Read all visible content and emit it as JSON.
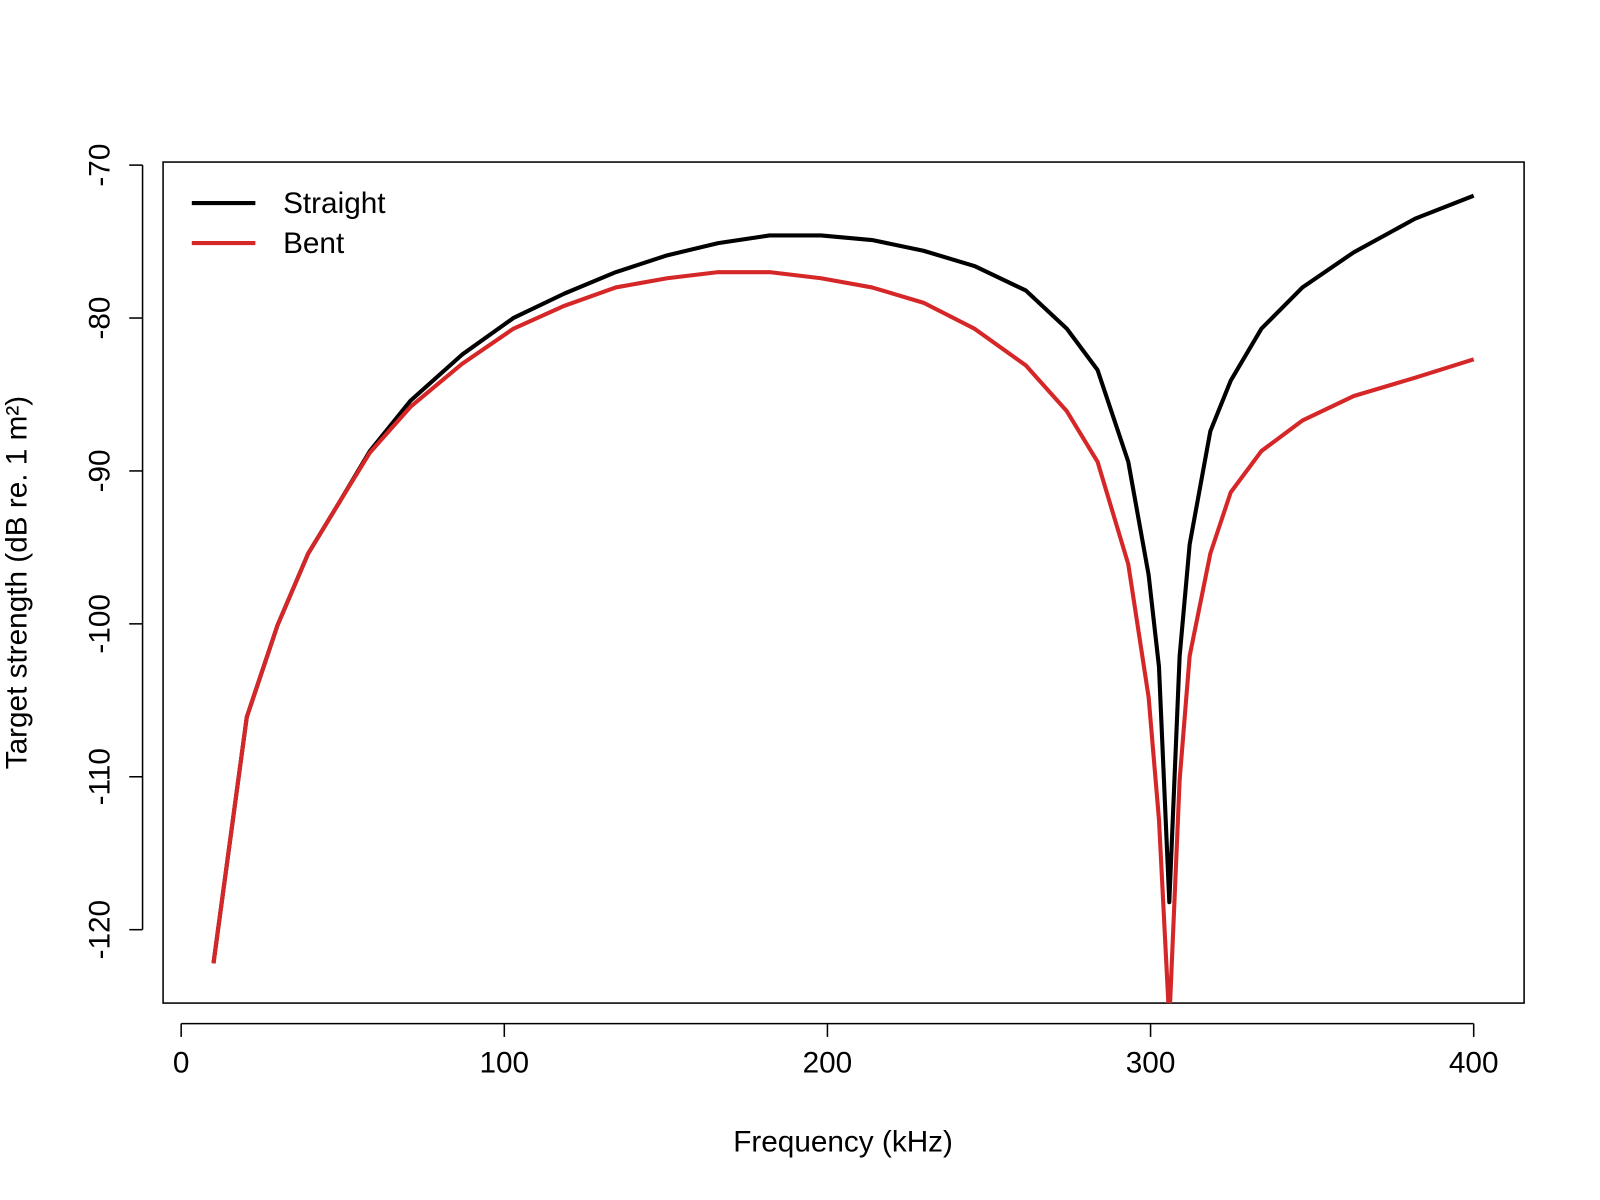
{
  "chart_data": {
    "type": "line",
    "x_label": "Frequency (kHz)",
    "y_label": "Target strength (dB re. 1 m²)",
    "x": [
      10,
      20.3,
      29.8,
      39.3,
      48.8,
      58.4,
      71,
      86.9,
      102.8,
      118.6,
      134.5,
      150.4,
      166.2,
      182.1,
      198,
      213.8,
      229.7,
      245.5,
      261.4,
      274.1,
      283.6,
      293.1,
      299.4,
      302.6,
      305.8,
      309,
      312.1,
      318.5,
      324.8,
      334.3,
      347,
      362.9,
      381.9,
      400
    ],
    "series": [
      {
        "name": "Straight",
        "color": "#000000",
        "values": [
          -122.2,
          -106.1,
          -100.1,
          -95.4,
          -92.1,
          -88.7,
          -85.4,
          -82.4,
          -80.0,
          -78.4,
          -77.0,
          -75.9,
          -75.1,
          -74.6,
          -74.6,
          -74.9,
          -75.6,
          -76.6,
          -78.2,
          -80.7,
          -83.4,
          -89.4,
          -96.8,
          -102.8,
          -118.2,
          -102.1,
          -94.8,
          -87.4,
          -84.1,
          -80.7,
          -78.0,
          -75.7,
          -73.5,
          -72.0
        ]
      },
      {
        "name": "Bent",
        "color": "#d62728",
        "values": [
          -122.2,
          -106.1,
          -100.1,
          -95.4,
          -92.1,
          -88.8,
          -85.8,
          -83.0,
          -80.7,
          -79.2,
          -78.0,
          -77.4,
          -77.0,
          -77.0,
          -77.4,
          -78.0,
          -79.0,
          -80.7,
          -83.1,
          -86.1,
          -89.4,
          -96.1,
          -104.8,
          -112.8,
          -126,
          -110.2,
          -102.1,
          -95.4,
          -91.4,
          -88.7,
          -86.7,
          -85.1,
          -83.9,
          -82.7
        ]
      }
    ],
    "xlim": [
      -5.6,
      415.6
    ],
    "xticks": [
      0,
      100,
      200,
      300,
      400
    ],
    "ylim": [
      -124.8,
      -69.8
    ],
    "yticks": [
      -120,
      -110,
      -100,
      -90,
      -80,
      -70
    ],
    "legend": "top-left"
  }
}
